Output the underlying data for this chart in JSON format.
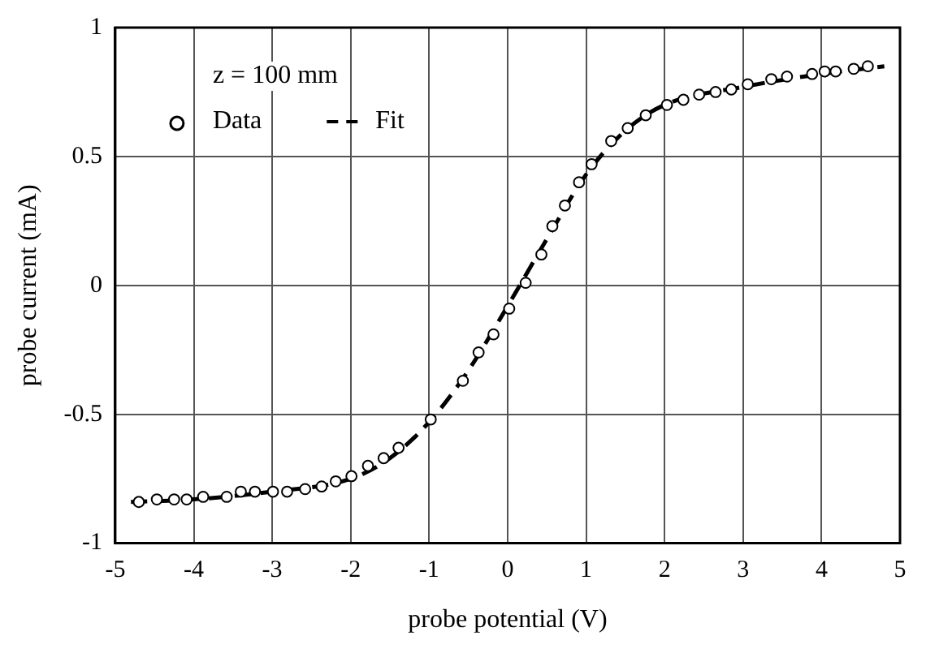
{
  "chart_data": {
    "type": "scatter",
    "xlabel": "probe potential (V)",
    "ylabel": "probe current (mA)",
    "legend_title": "z = 100 mm",
    "xlim": [
      -5,
      5
    ],
    "xticks": [
      -5,
      -4,
      -3,
      -2,
      -1,
      0,
      1,
      2,
      3,
      4,
      5
    ],
    "ylim": [
      -1,
      1
    ],
    "yticks": [
      -1,
      -0.5,
      0,
      0.5,
      1
    ],
    "grid": true,
    "legend": "top left",
    "series": [
      {
        "name": "Data",
        "type": "scatter",
        "color": "#000000",
        "marker": "circle",
        "x": [
          -4.7,
          -4.47,
          -4.25,
          -4.09,
          -3.88,
          -3.58,
          -3.4,
          -3.22,
          -2.99,
          -2.81,
          -2.58,
          -2.37,
          -2.19,
          -1.99,
          -1.78,
          -1.58,
          -1.39,
          -0.98,
          -0.57,
          -0.37,
          -0.18,
          0.02,
          0.23,
          0.43,
          0.57,
          0.73,
          0.91,
          1.07,
          1.32,
          1.53,
          1.76,
          2.03,
          2.24,
          2.44,
          2.65,
          2.85,
          3.06,
          3.36,
          3.56,
          3.88,
          4.04,
          4.18,
          4.41,
          4.59
        ],
        "values": [
          -0.84,
          -0.83,
          -0.83,
          -0.83,
          -0.82,
          -0.82,
          -0.8,
          -0.8,
          -0.8,
          -0.8,
          -0.79,
          -0.78,
          -0.76,
          -0.74,
          -0.7,
          -0.67,
          -0.63,
          -0.52,
          -0.37,
          -0.26,
          -0.19,
          -0.09,
          0.01,
          0.12,
          0.23,
          0.31,
          0.4,
          0.47,
          0.56,
          0.61,
          0.66,
          0.7,
          0.72,
          0.74,
          0.75,
          0.76,
          0.78,
          0.8,
          0.81,
          0.82,
          0.83,
          0.83,
          0.84,
          0.85
        ]
      },
      {
        "name": "Fit",
        "type": "line",
        "color": "#000000",
        "marker": "none",
        "line_style": "dashed",
        "x": [
          -4.8,
          -4,
          -3,
          -2,
          -1.5,
          -1,
          -0.5,
          0,
          0.5,
          1,
          1.5,
          2,
          3,
          4,
          4.8
        ],
        "values": [
          -0.84,
          -0.83,
          -0.8,
          -0.75,
          -0.67,
          -0.53,
          -0.33,
          -0.08,
          0.18,
          0.43,
          0.6,
          0.7,
          0.77,
          0.82,
          0.85
        ]
      }
    ]
  }
}
